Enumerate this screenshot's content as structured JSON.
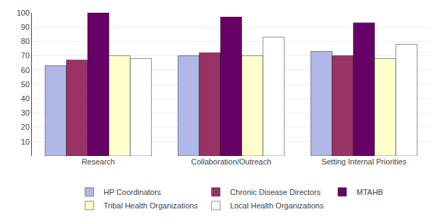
{
  "chart_data": {
    "type": "bar",
    "categories": [
      "Research",
      "Collaboration/Outreach",
      "Setting Internal Priorities"
    ],
    "series": [
      {
        "name": "HP Coordinators",
        "color": "#b0b8e8",
        "values": [
          63,
          70,
          73
        ]
      },
      {
        "name": "Chronic Disease Directors",
        "color": "#993366",
        "values": [
          67,
          72,
          70
        ]
      },
      {
        "name": "MTAHB",
        "color": "#660066",
        "values": [
          100,
          97,
          93
        ]
      },
      {
        "name": "Tribal Health Organizations",
        "color": "#ffffcc",
        "values": [
          70,
          70,
          68
        ]
      },
      {
        "name": "Local Health Organizations",
        "color": "#ffffff",
        "values": [
          68,
          83,
          78
        ]
      }
    ],
    "ylim": [
      0,
      100
    ],
    "yticks": [
      10,
      20,
      30,
      40,
      50,
      60,
      70,
      80,
      90,
      100
    ],
    "grid": true,
    "legend": "bottom"
  }
}
